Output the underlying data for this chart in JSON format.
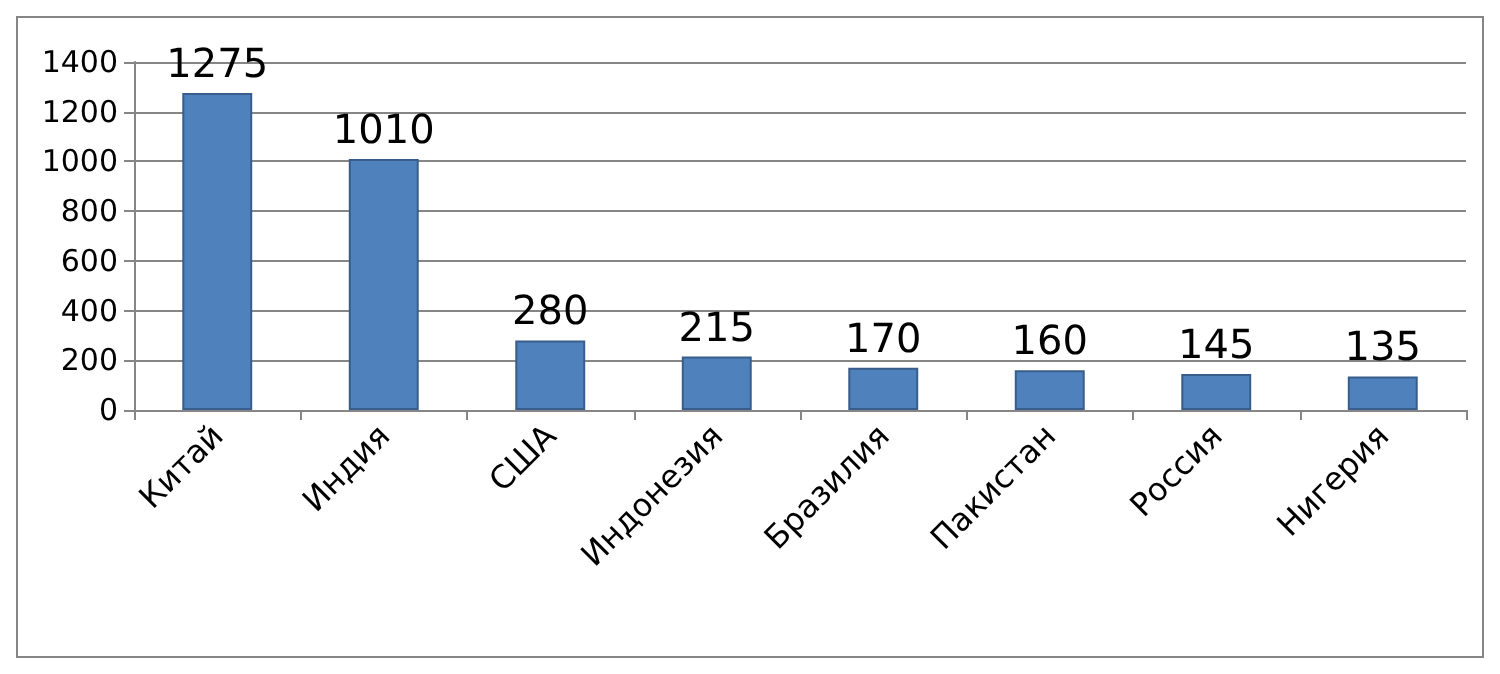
{
  "chart_data": {
    "type": "bar",
    "categories": [
      "Китай",
      "Индия",
      "США",
      "Индонезия",
      "Бразилия",
      "Пакистан",
      "Россия",
      "Нигерия"
    ],
    "values": [
      1275,
      1010,
      280,
      215,
      170,
      160,
      145,
      135
    ],
    "color": "#4f81bd",
    "ylim": [
      0,
      1400
    ],
    "yticks": [
      0,
      200,
      400,
      600,
      800,
      1000,
      1200,
      1400
    ],
    "grid": "y",
    "data_labels": true
  }
}
